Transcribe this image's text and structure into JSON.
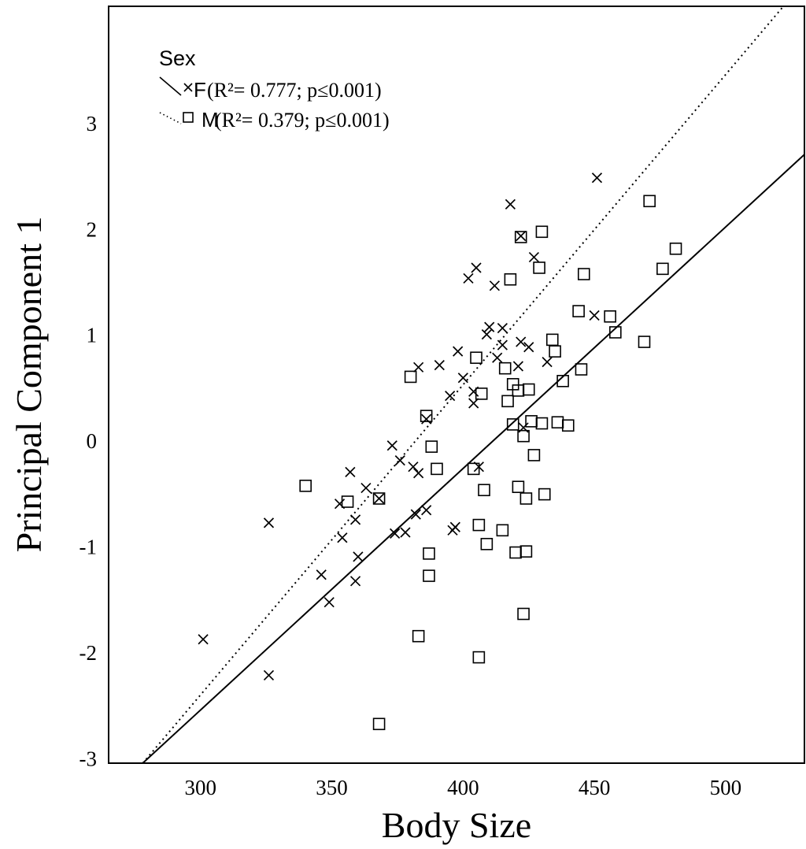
{
  "chart_data": {
    "type": "scatter",
    "title": "",
    "xlabel": "Body Size",
    "ylabel": "Principal Component 1",
    "xlim": [
      265,
      530
    ],
    "ylim": [
      -3.05,
      4.1
    ],
    "x_ticks": [
      "300",
      "350",
      "400",
      "450",
      "500"
    ],
    "y_ticks": [
      "-3",
      "-2",
      "-1",
      "0",
      "1",
      "2",
      "3"
    ],
    "grid": false,
    "legend": {
      "title": "Sex",
      "placement": "top-left",
      "entries": [
        {
          "code": "F",
          "stats": "(R²= 0.777; p≤0.001)",
          "r2": "0.777",
          "p": "0.001",
          "marker": "x",
          "line": "solid"
        },
        {
          "code": "M",
          "stats": "(R²= 0.379; p≤0.001)",
          "r2": "0.379",
          "p": "0.001",
          "marker": "square",
          "line": "dotted"
        }
      ]
    },
    "series": [
      {
        "name": "F",
        "marker": "x",
        "fit_line": {
          "style": "solid",
          "x": [
            278,
            530
          ],
          "y": [
            -3.05,
            2.7
          ]
        },
        "points": [
          [
            301,
            -1.88
          ],
          [
            326,
            -0.78
          ],
          [
            326,
            -2.22
          ],
          [
            346,
            -1.27
          ],
          [
            349,
            -1.53
          ],
          [
            353,
            -0.6
          ],
          [
            354,
            -0.92
          ],
          [
            357,
            -0.3
          ],
          [
            359,
            -0.75
          ],
          [
            359,
            -1.33
          ],
          [
            360,
            -1.1
          ],
          [
            363,
            -0.45
          ],
          [
            368,
            -0.55
          ],
          [
            373,
            -0.05
          ],
          [
            374,
            -0.88
          ],
          [
            376,
            -0.19
          ],
          [
            378,
            -0.87
          ],
          [
            381,
            -0.25
          ],
          [
            382,
            -0.7
          ],
          [
            383,
            -0.31
          ],
          [
            383,
            0.69
          ],
          [
            386,
            -0.66
          ],
          [
            386,
            0.2
          ],
          [
            391,
            0.71
          ],
          [
            395,
            0.42
          ],
          [
            396,
            -0.85
          ],
          [
            397,
            -0.82
          ],
          [
            398,
            0.84
          ],
          [
            400,
            0.59
          ],
          [
            402,
            1.53
          ],
          [
            404,
            0.35
          ],
          [
            404,
            0.46
          ],
          [
            405,
            1.63
          ],
          [
            406,
            -0.25
          ],
          [
            409,
            1.0
          ],
          [
            410,
            1.07
          ],
          [
            412,
            1.46
          ],
          [
            413,
            0.78
          ],
          [
            415,
            1.06
          ],
          [
            415,
            0.9
          ],
          [
            418,
            2.23
          ],
          [
            421,
            0.7
          ],
          [
            422,
            1.93
          ],
          [
            422,
            0.93
          ],
          [
            423,
            0.12
          ],
          [
            425,
            0.88
          ],
          [
            427,
            1.73
          ],
          [
            432,
            0.74
          ],
          [
            450,
            1.18
          ],
          [
            451,
            2.48
          ]
        ]
      },
      {
        "name": "M",
        "marker": "square",
        "fit_line": {
          "style": "dotted",
          "x": [
            278,
            522
          ],
          "y": [
            -3.05,
            4.1
          ]
        },
        "points": [
          [
            340,
            -0.43
          ],
          [
            356,
            -0.58
          ],
          [
            368,
            -0.55
          ],
          [
            368,
            -2.68
          ],
          [
            380,
            0.6
          ],
          [
            383,
            -1.85
          ],
          [
            386,
            0.23
          ],
          [
            387,
            -1.07
          ],
          [
            387,
            -1.28
          ],
          [
            388,
            -0.06
          ],
          [
            390,
            -0.27
          ],
          [
            404,
            -0.27
          ],
          [
            405,
            0.78
          ],
          [
            406,
            -0.8
          ],
          [
            406,
            -2.05
          ],
          [
            407,
            0.44
          ],
          [
            408,
            -0.47
          ],
          [
            409,
            -0.98
          ],
          [
            415,
            -0.85
          ],
          [
            416,
            0.68
          ],
          [
            417,
            0.37
          ],
          [
            418,
            1.52
          ],
          [
            419,
            0.53
          ],
          [
            419,
            0.15
          ],
          [
            420,
            -1.06
          ],
          [
            421,
            -0.44
          ],
          [
            421,
            0.47
          ],
          [
            422,
            1.92
          ],
          [
            423,
            -1.64
          ],
          [
            423,
            0.04
          ],
          [
            424,
            -0.55
          ],
          [
            424,
            -1.05
          ],
          [
            425,
            0.48
          ],
          [
            426,
            0.18
          ],
          [
            427,
            -0.14
          ],
          [
            429,
            1.63
          ],
          [
            430,
            0.16
          ],
          [
            430,
            1.97
          ],
          [
            431,
            -0.51
          ],
          [
            434,
            0.95
          ],
          [
            435,
            0.84
          ],
          [
            436,
            0.17
          ],
          [
            438,
            0.56
          ],
          [
            440,
            0.14
          ],
          [
            444,
            1.22
          ],
          [
            445,
            0.67
          ],
          [
            446,
            1.57
          ],
          [
            456,
            1.17
          ],
          [
            458,
            1.02
          ],
          [
            469,
            0.93
          ],
          [
            471,
            2.26
          ],
          [
            476,
            1.62
          ],
          [
            481,
            1.81
          ]
        ]
      }
    ]
  }
}
